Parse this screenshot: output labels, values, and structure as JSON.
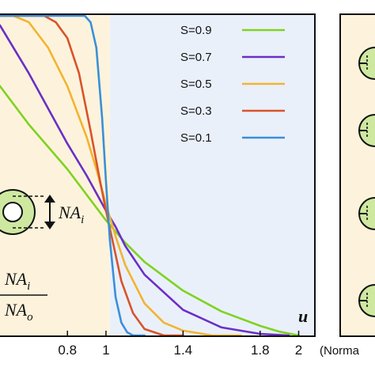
{
  "chart_data": {
    "type": "line",
    "xlabel": "u",
    "x_unit_text": "(Norma",
    "xlim": [
      0.45,
      2.08
    ],
    "ylim": [
      0,
      1
    ],
    "x_ticks": [
      "0.8",
      "1",
      "1.4",
      "1.8",
      "2"
    ],
    "x_tick_values": [
      0.8,
      1.0,
      1.4,
      1.8,
      2.0
    ],
    "shaded_regions": [
      {
        "from": 0.45,
        "to": 1.02,
        "color": "#fdf3dc"
      },
      {
        "from": 1.02,
        "to": 2.08,
        "color": "#eaf0fa"
      }
    ],
    "legend_position": "top-right",
    "series": [
      {
        "name": "S=0.9",
        "color": "#7ed321",
        "x": [
          0.45,
          0.6,
          0.8,
          1.0,
          1.1,
          1.2,
          1.4,
          1.6,
          1.8,
          1.9,
          2.0
        ],
        "y": [
          0.78,
          0.66,
          0.52,
          0.36,
          0.29,
          0.23,
          0.14,
          0.075,
          0.03,
          0.012,
          0.0
        ]
      },
      {
        "name": "S=0.7",
        "color": "#6b2fc6",
        "x": [
          0.45,
          0.6,
          0.8,
          0.9,
          1.0,
          1.05,
          1.1,
          1.2,
          1.4,
          1.6,
          1.8,
          1.95
        ],
        "y": [
          0.97,
          0.82,
          0.6,
          0.5,
          0.39,
          0.34,
          0.28,
          0.19,
          0.08,
          0.025,
          0.005,
          0.0
        ]
      },
      {
        "name": "S=0.5",
        "color": "#f2b430",
        "x": [
          0.45,
          0.52,
          0.6,
          0.7,
          0.8,
          0.9,
          0.95,
          1.0,
          1.05,
          1.1,
          1.2,
          1.3,
          1.4,
          1.55,
          1.7
        ],
        "y": [
          1.0,
          1.0,
          0.98,
          0.9,
          0.78,
          0.62,
          0.52,
          0.41,
          0.31,
          0.22,
          0.1,
          0.04,
          0.015,
          0.0,
          0.0
        ]
      },
      {
        "name": "S=0.3",
        "color": "#d9532a",
        "x": [
          0.45,
          0.68,
          0.74,
          0.8,
          0.86,
          0.92,
          0.97,
          1.0,
          1.04,
          1.08,
          1.14,
          1.2,
          1.3,
          1.4
        ],
        "y": [
          1.0,
          1.0,
          0.98,
          0.93,
          0.82,
          0.64,
          0.48,
          0.39,
          0.28,
          0.17,
          0.07,
          0.02,
          0.0,
          0.0
        ]
      },
      {
        "name": "S=0.1",
        "color": "#3a8fd9",
        "x": [
          0.45,
          0.89,
          0.92,
          0.95,
          0.98,
          1.0,
          1.02,
          1.05,
          1.08,
          1.11,
          1.14,
          1.2
        ],
        "y": [
          1.0,
          1.0,
          0.98,
          0.9,
          0.68,
          0.48,
          0.3,
          0.12,
          0.04,
          0.01,
          0.0,
          0.0
        ]
      }
    ]
  },
  "annotations": {
    "na_label": "NA",
    "na_sub": "i",
    "fraction_num": "NA",
    "fraction_num_sub": "i",
    "fraction_den": "NA",
    "fraction_den_sub": "o"
  }
}
